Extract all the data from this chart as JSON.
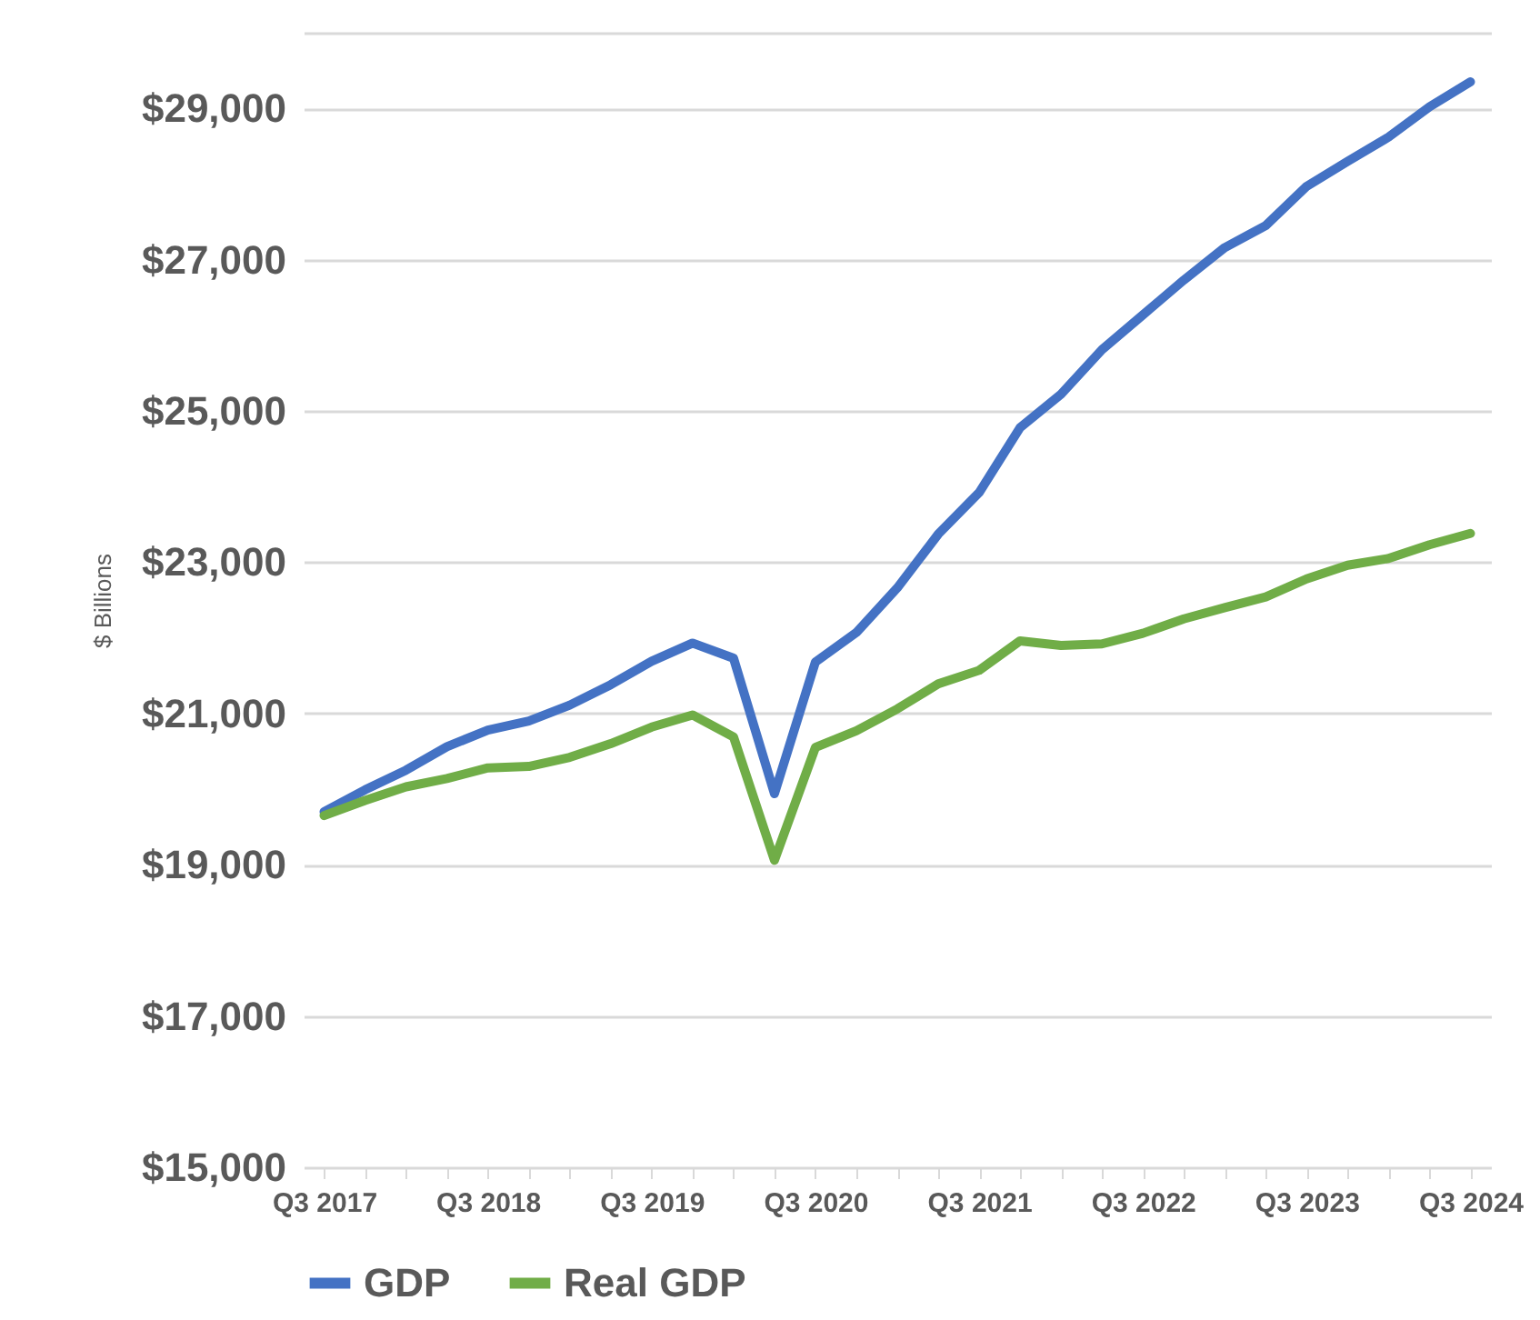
{
  "chart_data": {
    "type": "line",
    "ylabel": "$ Billions",
    "categories": [
      "Q3 2017",
      null,
      null,
      null,
      "Q3 2018",
      null,
      null,
      null,
      "Q3 2019",
      null,
      null,
      null,
      "Q3 2020",
      null,
      null,
      null,
      "Q3 2021",
      null,
      null,
      null,
      "Q3 2022",
      null,
      null,
      null,
      "Q3 2023",
      null,
      null,
      null,
      "Q3 2024"
    ],
    "series": [
      {
        "name": "GDP",
        "color": "#4472c4",
        "values": [
          19700,
          19990,
          20250,
          20560,
          20780,
          20900,
          21110,
          21380,
          21690,
          21930,
          21730,
          19940,
          21680,
          22070,
          22660,
          23370,
          23920,
          24780,
          25220,
          25810,
          26270,
          26730,
          27160,
          27450,
          27970,
          28300,
          28620,
          29020,
          29350
        ]
      },
      {
        "name": "Real GDP",
        "color": "#70ad47",
        "values": [
          19650,
          19850,
          20030,
          20140,
          20280,
          20300,
          20420,
          20600,
          20820,
          20980,
          20690,
          19060,
          20550,
          20770,
          21060,
          21390,
          21570,
          21960,
          21900,
          21920,
          22060,
          22250,
          22400,
          22540,
          22780,
          22960,
          23050,
          23230,
          23380
        ]
      }
    ],
    "ylim": [
      15000,
      30000
    ],
    "yticks": [
      {
        "value": 15000,
        "label": "$15,000"
      },
      {
        "value": 17000,
        "label": "$17,000"
      },
      {
        "value": 19000,
        "label": "$19,000"
      },
      {
        "value": 21000,
        "label": "$21,000"
      },
      {
        "value": 23000,
        "label": "$23,000"
      },
      {
        "value": 25000,
        "label": "$25,000"
      },
      {
        "value": 27000,
        "label": "$27,000"
      },
      {
        "value": 29000,
        "label": "$29,000"
      },
      {
        "value": 30000,
        "label": null
      }
    ],
    "grid": "y",
    "legend": "bottom",
    "marker": "none",
    "line_style": "solid"
  }
}
